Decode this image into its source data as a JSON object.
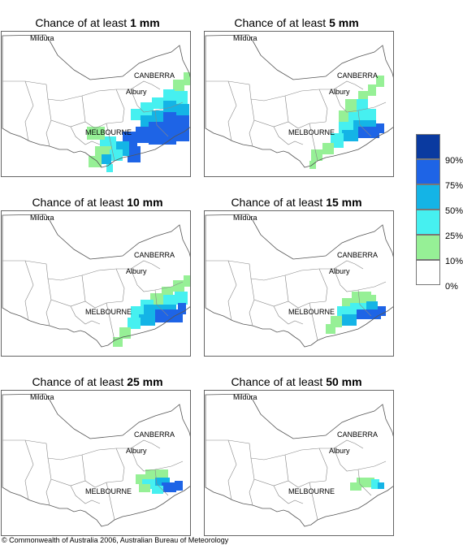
{
  "panels": [
    {
      "prefix": "Chance of at least ",
      "value": "1 mm"
    },
    {
      "prefix": "Chance of at least ",
      "value": "5 mm"
    },
    {
      "prefix": "Chance of at least ",
      "value": "10 mm"
    },
    {
      "prefix": "Chance of at least ",
      "value": "15 mm"
    },
    {
      "prefix": "Chance of at least ",
      "value": "25 mm"
    },
    {
      "prefix": "Chance of at least ",
      "value": "50 mm"
    }
  ],
  "place_labels": {
    "mildura": "Mildura",
    "canberra": "CANBERRA",
    "albury": "Albury",
    "melbourne": "MELBOURNE"
  },
  "legend": {
    "labels": [
      "90%",
      "75%",
      "50%",
      "25%",
      "10%",
      "0%"
    ],
    "colors": [
      "#0a3aa0",
      "#1e64e6",
      "#14b4e6",
      "#46f0f0",
      "#96f096",
      "#ffffff"
    ]
  },
  "copyright": "© Commonwealth of Australia 2006, Australian Bureau of Meteorology"
}
